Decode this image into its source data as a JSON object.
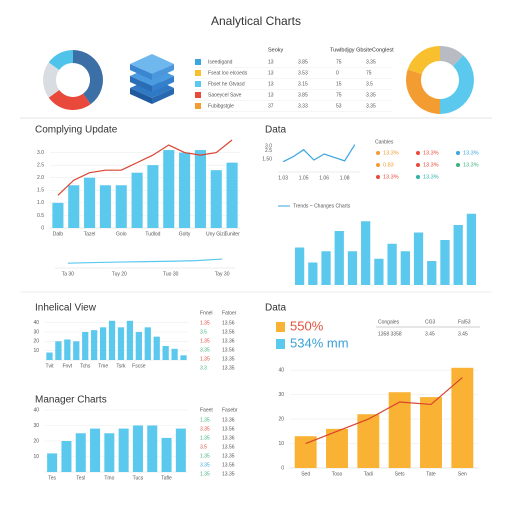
{
  "title": "Analytical Charts",
  "chart_data": [
    {
      "type": "pie",
      "values": [
        40,
        25,
        20,
        15
      ],
      "colors": [
        "#3b6fa6",
        "#e8493b",
        "#d9dde2",
        "#4fc3ea"
      ]
    },
    {
      "type": "pie",
      "values": [
        12,
        38,
        30,
        20
      ],
      "colors": [
        "#b8bcc2",
        "#5bc8ee",
        "#f39c32",
        "#f8c02e"
      ]
    },
    {
      "type": "bar",
      "title": "Complying Update",
      "categories": [
        "Dalb",
        null,
        "Tazel",
        null,
        "Golo",
        null,
        "Tudlod",
        null,
        "Golty",
        null,
        "Uny Giza",
        "Tuniter"
      ],
      "series": [
        {
          "color": "#5bc8ee",
          "values": [
            1.0,
            1.7,
            2.0,
            1.7,
            1.7,
            2.2,
            2.5,
            3.1,
            3.0,
            3.1,
            2.3,
            2.6
          ]
        },
        {
          "type": "line",
          "color": "#d9432f",
          "values": [
            1.3,
            1.9,
            2.2,
            2.3,
            2.3,
            2.6,
            2.9,
            3.3,
            3.0,
            2.9,
            3.0,
            3.5
          ]
        }
      ],
      "ylim": [
        0,
        3.5
      ],
      "yticks": [
        0,
        0.5,
        {
          "value": 1,
          "label": "1.0"
        },
        1.5,
        {
          "value": 2,
          "label": "2.0"
        },
        2.5,
        {
          "value": 3,
          "label": "3.0"
        }
      ],
      "grid": true
    },
    {
      "type": "line",
      "categories": [
        "Ta 30",
        null,
        "Tuy 20",
        null,
        "Tuo 30",
        null,
        "Tay 30"
      ],
      "series": [
        {
          "color": "#5bc8ee",
          "values": [
            3,
            3.4,
            3.7,
            4,
            4.2,
            4.6,
            5.6
          ]
        }
      ],
      "ylim": [
        0,
        10
      ]
    },
    {
      "type": "line",
      "title": "Data",
      "categories": [
        "1.03",
        null,
        "1.05",
        null,
        "1.06",
        null,
        "1.08",
        null
      ],
      "series": [
        {
          "color": "#3aa6e0",
          "values": [
            1.2,
            1.8,
            2.6,
            1.4,
            2.1,
            1.7,
            1.3,
            3.2
          ]
        }
      ],
      "ylim": [
        0,
        3.5
      ],
      "yticks": [
        {
          "value": 1.5,
          "label": "1.50"
        },
        2.5,
        {
          "value": 3,
          "label": "3.0"
        }
      ]
    },
    {
      "type": "bar",
      "title": "Trends ~ Changes Charts",
      "series": [
        {
          "color": "#5bc8ee",
          "values": [
            50,
            30,
            45,
            72,
            45,
            85,
            35,
            55,
            45,
            70,
            32,
            60,
            80,
            95
          ]
        }
      ],
      "ylim": [
        0,
        100
      ]
    },
    {
      "type": "bar",
      "title": "Inhelical View",
      "categories": [
        "Tvit",
        null,
        "Fnvt",
        null,
        "Tchs",
        null,
        "Tme",
        null,
        "Tsrk",
        null,
        "Fscse",
        null,
        null,
        null,
        null,
        null
      ],
      "series": [
        {
          "color": "#5bc8ee",
          "values": [
            8,
            20,
            22,
            20,
            30,
            32,
            35,
            42,
            35,
            42,
            30,
            35,
            25,
            15,
            12,
            5
          ]
        }
      ],
      "ylim": [
        0,
        45
      ],
      "yticks": [
        10,
        20,
        30,
        40
      ],
      "grid": true
    },
    {
      "type": "bar",
      "title": "Manager Charts",
      "categories": [
        "Tes",
        null,
        "Tesl",
        null,
        "Tmo",
        null,
        "Tucs",
        null,
        "Tafle",
        null
      ],
      "series": [
        {
          "color": "#5bc8ee",
          "values": [
            12,
            20,
            25,
            28,
            25,
            28,
            30,
            30,
            22,
            28
          ]
        }
      ],
      "ylim": [
        0,
        40
      ],
      "yticks": [
        10,
        20,
        30,
        40
      ],
      "grid": true
    },
    {
      "type": "bar",
      "title": "Data",
      "categories": [
        "Sed",
        "Toso",
        "Tadi",
        "Sets",
        "Tate",
        "Sen"
      ],
      "series": [
        {
          "color": "#f9b233",
          "values": [
            13,
            16,
            22,
            31,
            29,
            41
          ]
        },
        {
          "type": "line",
          "color": "#d9432f",
          "values": [
            10,
            15,
            20,
            27,
            26,
            37
          ]
        }
      ],
      "ylim": [
        0,
        45
      ],
      "yticks": [
        0,
        10,
        20,
        30,
        40
      ],
      "grid": true
    }
  ],
  "legend_table": {
    "header": [
      "Seoky",
      "Tuwlbdjgy Gbsite",
      "Conglest"
    ],
    "rows": [
      {
        "color": "#3aa6e0",
        "cells": [
          "Iseedigand",
          "13",
          "3.85",
          "75",
          "3.35"
        ]
      },
      {
        "color": "#f8c02e",
        "cells": [
          "Fseat loo elcoeds",
          "13",
          "3.53",
          "0",
          "75"
        ]
      },
      {
        "color": "#5bc8ee",
        "cells": [
          "Fbset he Gtvasd",
          "13",
          "3.15",
          "15",
          "3.5"
        ]
      },
      {
        "color": "#e8493b",
        "cells": [
          "Saoeycel Save",
          "13",
          "3.85",
          "75",
          "3.35"
        ]
      },
      {
        "color": "#f39c32",
        "cells": [
          "Fubibgstgle",
          "37",
          "3.33",
          "53",
          "3.35"
        ]
      }
    ]
  },
  "data_legend": {
    "header": "Canbles",
    "items": [
      {
        "color": "#f39c32",
        "text": "13.3%"
      },
      {
        "color": "#e8493b",
        "text": "13.3%"
      },
      {
        "color": "#3aa6e0",
        "text": "13.3%"
      },
      {
        "color": "#f39c32",
        "text": "0.83"
      },
      {
        "color": "#e8493b",
        "text": "13.3%"
      },
      {
        "color": "#3bb27a",
        "text": "13.3%"
      },
      {
        "color": "#e8493b",
        "text": "13.3%"
      },
      {
        "color": "#2bb3a6",
        "text": "13.3%"
      }
    ]
  },
  "side_tables": [
    {
      "header": [
        "Fnnel",
        "Fatoer"
      ],
      "rows": [
        {
          "color": "#e8493b",
          "cells": [
            "1.35",
            "13.56"
          ]
        },
        {
          "color": "#3bb27a",
          "cells": [
            "3.5",
            "13.56"
          ]
        },
        {
          "color": "#e8493b",
          "cells": [
            "1.35",
            "13.36"
          ]
        },
        {
          "color": "#3bb27a",
          "cells": [
            "3.35",
            "13.56"
          ]
        },
        {
          "color": "#e8493b",
          "cells": [
            "1.35",
            "13.35"
          ]
        },
        {
          "color": "#3bb27a",
          "cells": [
            "3.3",
            "13.35"
          ]
        }
      ]
    },
    {
      "header": [
        "Faeet",
        "Fasebr"
      ],
      "rows": [
        {
          "color": "#3bb27a",
          "cells": [
            "1.35",
            "13.36"
          ]
        },
        {
          "color": "#e8493b",
          "cells": [
            "3.35",
            "13.56"
          ]
        },
        {
          "color": "#3bb27a",
          "cells": [
            "1.35",
            "13.36"
          ]
        },
        {
          "color": "#e8493b",
          "cells": [
            "3.5",
            "13.56"
          ]
        },
        {
          "color": "#3bb27a",
          "cells": [
            "1.35",
            "13.35"
          ]
        },
        {
          "color": "#3aa6e0",
          "cells": [
            "3.35",
            "13.56"
          ]
        },
        {
          "color": "#3bb27a",
          "cells": [
            "1.35",
            "13.35"
          ]
        }
      ]
    }
  ],
  "kpis": [
    {
      "color": "#f9b233",
      "text_color": "#e0533d",
      "text": "550%"
    },
    {
      "color": "#5bc8ee",
      "text_color": "#3aa0d8",
      "text": "534% mm"
    }
  ],
  "kpi_table": {
    "header": [
      "Congales",
      "CG3",
      "Fal53"
    ],
    "rows": [
      {
        "cells": [
          "1358 3358",
          "3.45",
          "3.45"
        ]
      }
    ]
  }
}
